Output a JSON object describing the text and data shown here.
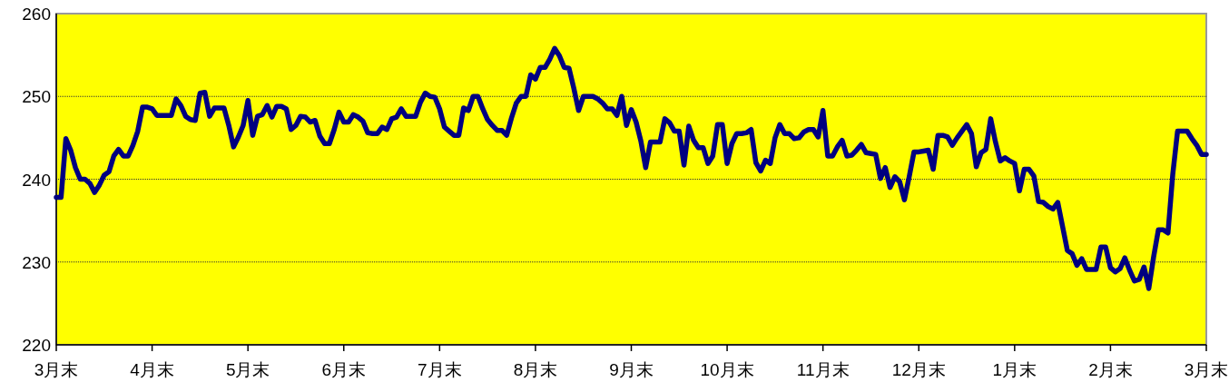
{
  "chart_data": {
    "type": "line",
    "categories": [
      "3月末",
      null,
      null,
      null,
      null,
      null,
      null,
      null,
      null,
      null,
      null,
      null,
      null,
      null,
      null,
      null,
      null,
      null,
      null,
      null,
      "4月末",
      null,
      null,
      null,
      null,
      null,
      null,
      null,
      null,
      null,
      null,
      null,
      null,
      null,
      null,
      null,
      null,
      null,
      null,
      null,
      "5月末",
      null,
      null,
      null,
      null,
      null,
      null,
      null,
      null,
      null,
      null,
      null,
      null,
      null,
      null,
      null,
      null,
      null,
      null,
      null,
      "6月末",
      null,
      null,
      null,
      null,
      null,
      null,
      null,
      null,
      null,
      null,
      null,
      null,
      null,
      null,
      null,
      null,
      null,
      null,
      null,
      "7月末",
      null,
      null,
      null,
      null,
      null,
      null,
      null,
      null,
      null,
      null,
      null,
      null,
      null,
      null,
      null,
      null,
      null,
      null,
      null,
      "8月末",
      null,
      null,
      null,
      null,
      null,
      null,
      null,
      null,
      null,
      null,
      null,
      null,
      null,
      null,
      null,
      null,
      null,
      null,
      null,
      "9月末",
      null,
      null,
      null,
      null,
      null,
      null,
      null,
      null,
      null,
      null,
      null,
      null,
      null,
      null,
      null,
      null,
      null,
      null,
      null,
      "10月末",
      null,
      null,
      null,
      null,
      null,
      null,
      null,
      null,
      null,
      null,
      null,
      null,
      null,
      null,
      null,
      null,
      null,
      null,
      null,
      "11月末",
      null,
      null,
      null,
      null,
      null,
      null,
      null,
      null,
      null,
      null,
      null,
      null,
      null,
      null,
      null,
      null,
      null,
      null,
      null,
      "12月末",
      null,
      null,
      null,
      null,
      null,
      null,
      null,
      null,
      null,
      null,
      null,
      null,
      null,
      null,
      null,
      null,
      null,
      null,
      null,
      "1月末",
      null,
      null,
      null,
      null,
      null,
      null,
      null,
      null,
      null,
      null,
      null,
      null,
      null,
      null,
      null,
      null,
      null,
      null,
      null,
      "2月末",
      null,
      null,
      null,
      null,
      null,
      null,
      null,
      null,
      null,
      null,
      null,
      null,
      null,
      null,
      null,
      null,
      null,
      null,
      null,
      "3月末"
    ],
    "ylim": [
      220,
      260
    ],
    "yticks": [
      220,
      230,
      240,
      250,
      260
    ],
    "grid": "y",
    "marker": "none",
    "line_style": "solid",
    "series": [
      {
        "color": "#000080",
        "values": [
          237.8,
          237.8,
          244.9,
          243.5,
          241.4,
          240,
          240,
          239.5,
          238.4,
          239.3,
          240.5,
          240.9,
          242.8,
          243.6,
          242.8,
          242.8,
          244.1,
          245.8,
          248.7,
          248.7,
          248.5,
          247.7,
          247.7,
          247.7,
          247.7,
          249.7,
          248.9,
          247.6,
          247.2,
          247.1,
          250.4,
          250.5,
          247.6,
          248.6,
          248.6,
          248.6,
          246.5,
          243.9,
          245.1,
          246.5,
          249.5,
          245.3,
          247.6,
          247.8,
          248.9,
          247.5,
          248.8,
          248.8,
          248.5,
          246,
          246.5,
          247.6,
          247.5,
          246.9,
          247.1,
          245.2,
          244.3,
          244.3,
          246,
          248.1,
          246.9,
          246.9,
          247.8,
          247.5,
          247,
          245.6,
          245.5,
          245.5,
          246.3,
          246,
          247.3,
          247.5,
          248.5,
          247.6,
          247.6,
          247.6,
          249.3,
          250.4,
          250,
          249.9,
          248.5,
          246.3,
          245.8,
          245.3,
          245.3,
          248.6,
          248.3,
          250,
          250,
          248.5,
          247.2,
          246.5,
          245.9,
          245.9,
          245.3,
          247.4,
          249.2,
          250,
          250,
          252.6,
          252.1,
          253.5,
          253.5,
          254.5,
          255.8,
          254.9,
          253.5,
          253.4,
          251,
          248.3,
          250,
          250,
          250,
          249.7,
          249.2,
          248.5,
          248.5,
          247.7,
          250,
          246.5,
          248.4,
          246.9,
          244.6,
          241.4,
          244.5,
          244.5,
          244.5,
          247.3,
          246.8,
          245.8,
          245.8,
          241.7,
          246.4,
          244.7,
          243.8,
          243.8,
          241.9,
          242.8,
          246.6,
          246.6,
          241.9,
          244.3,
          245.5,
          245.5,
          245.6,
          246,
          242,
          241,
          242.3,
          241.9,
          245,
          246.6,
          245.5,
          245.5,
          244.9,
          245,
          245.7,
          246,
          246,
          245.1,
          248.3,
          242.8,
          242.8,
          243.9,
          244.7,
          242.8,
          242.9,
          243.5,
          244.2,
          243.2,
          243.1,
          243,
          240.1,
          241.4,
          239,
          240.3,
          239.7,
          237.5,
          240.3,
          243.3,
          243.3,
          243.4,
          243.5,
          241.2,
          245.3,
          245.3,
          245.1,
          244.1,
          245,
          245.8,
          246.6,
          245.5,
          241.5,
          243.2,
          243.6,
          247.3,
          244.5,
          242.2,
          242.6,
          242.2,
          241.9,
          238.6,
          241.2,
          241.2,
          240.4,
          237.3,
          237.2,
          236.7,
          236.4,
          237.2,
          234.3,
          231.4,
          231,
          229.6,
          230.4,
          229.1,
          229.1,
          229.1,
          231.8,
          231.8,
          229.3,
          228.8,
          229.2,
          230.5,
          229,
          227.7,
          227.9,
          229.4,
          226.8,
          230.6,
          233.9,
          233.9,
          233.5,
          240.6,
          245.8,
          245.8,
          245.8,
          244.9,
          244.1,
          243,
          243
        ]
      }
    ]
  }
}
